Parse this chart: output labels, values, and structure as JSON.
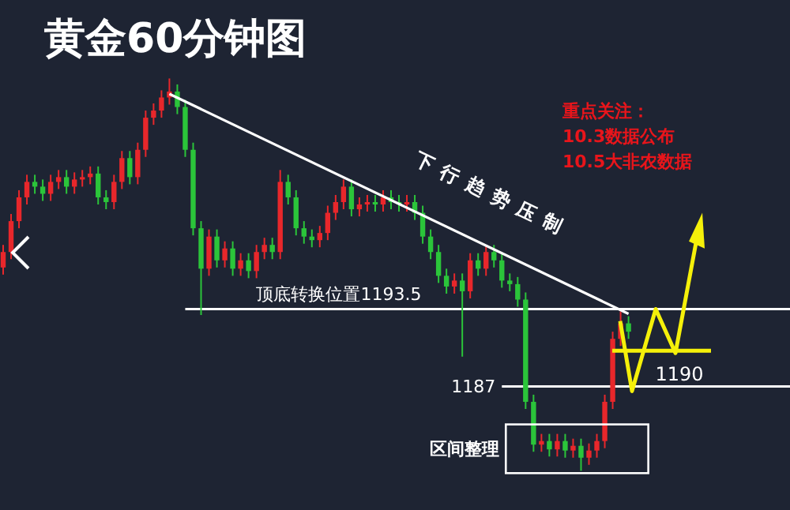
{
  "chart_data": {
    "type": "candlestick",
    "title": "黄金60分钟图",
    "categories": [
      null,
      null,
      null,
      null,
      null,
      null,
      null,
      null,
      null,
      null,
      null,
      null,
      null,
      null,
      null,
      null,
      null,
      null,
      null,
      null,
      null,
      null,
      null,
      null,
      null,
      null,
      null,
      null,
      null,
      null,
      null,
      null,
      null,
      null,
      null,
      null,
      null,
      null,
      null,
      null,
      null,
      null,
      null,
      null,
      null,
      null,
      null,
      null,
      null,
      null,
      null,
      null,
      null,
      null,
      null,
      null,
      null,
      null,
      null,
      null,
      null,
      null,
      null,
      null,
      null,
      null,
      null,
      null,
      null,
      null,
      null,
      null,
      null,
      null,
      null,
      null,
      null,
      null,
      null,
      null
    ],
    "ohlc": [
      [
        1197.0,
        1198.9,
        1196.4,
        1198.3
      ],
      [
        1198.3,
        1201.5,
        1197.7,
        1200.9
      ],
      [
        1200.9,
        1203.5,
        1200.3,
        1202.9
      ],
      [
        1202.9,
        1204.8,
        1202.3,
        1204.2
      ],
      [
        1204.2,
        1204.8,
        1203.2,
        1203.8
      ],
      [
        1203.8,
        1204.4,
        1202.6,
        1203.2
      ],
      [
        1203.2,
        1204.8,
        1202.6,
        1204.2
      ],
      [
        1204.2,
        1205.2,
        1203.6,
        1204.6
      ],
      [
        1204.6,
        1205.2,
        1203.2,
        1203.8
      ],
      [
        1203.8,
        1205.0,
        1203.2,
        1204.4
      ],
      [
        1204.4,
        1205.2,
        1203.8,
        1204.6
      ],
      [
        1204.6,
        1205.5,
        1204.0,
        1204.9
      ],
      [
        1204.9,
        1205.5,
        1202.3,
        1202.9
      ],
      [
        1202.9,
        1203.5,
        1201.9,
        1202.5
      ],
      [
        1202.5,
        1204.8,
        1201.9,
        1204.2
      ],
      [
        1204.2,
        1206.8,
        1203.6,
        1206.2
      ],
      [
        1206.2,
        1206.8,
        1204.0,
        1204.6
      ],
      [
        1204.6,
        1207.5,
        1204.0,
        1206.9
      ],
      [
        1206.9,
        1210.2,
        1206.3,
        1209.6
      ],
      [
        1209.6,
        1210.8,
        1209.0,
        1210.2
      ],
      [
        1210.2,
        1211.9,
        1209.6,
        1211.3
      ],
      [
        1211.3,
        1212.9,
        1210.7,
        1211.8
      ],
      [
        1211.8,
        1212.4,
        1209.9,
        1210.5
      ],
      [
        1210.5,
        1211.1,
        1206.3,
        1206.9
      ],
      [
        1206.9,
        1207.5,
        1199.7,
        1200.3
      ],
      [
        1200.3,
        1200.9,
        1193.0,
        1196.9
      ],
      [
        1196.9,
        1200.2,
        1196.3,
        1199.6
      ],
      [
        1199.6,
        1200.2,
        1197.0,
        1197.6
      ],
      [
        1197.6,
        1199.2,
        1197.0,
        1198.6
      ],
      [
        1198.6,
        1199.2,
        1196.3,
        1196.9
      ],
      [
        1196.9,
        1198.2,
        1196.3,
        1197.6
      ],
      [
        1197.6,
        1198.2,
        1196.1,
        1196.7
      ],
      [
        1196.7,
        1198.9,
        1196.1,
        1198.3
      ],
      [
        1198.3,
        1199.5,
        1197.7,
        1198.9
      ],
      [
        1198.9,
        1199.5,
        1197.7,
        1198.3
      ],
      [
        1198.3,
        1205.2,
        1197.7,
        1204.2
      ],
      [
        1204.2,
        1204.8,
        1202.3,
        1202.9
      ],
      [
        1202.9,
        1203.5,
        1199.7,
        1200.3
      ],
      [
        1200.3,
        1200.9,
        1199.0,
        1199.6
      ],
      [
        1199.6,
        1200.2,
        1198.7,
        1199.3
      ],
      [
        1199.3,
        1200.5,
        1198.7,
        1199.9
      ],
      [
        1199.9,
        1202.2,
        1199.3,
        1201.6
      ],
      [
        1201.6,
        1203.1,
        1201.0,
        1202.5
      ],
      [
        1202.5,
        1204.4,
        1201.9,
        1203.8
      ],
      [
        1203.8,
        1204.4,
        1201.3,
        1201.9
      ],
      [
        1201.9,
        1202.9,
        1201.3,
        1202.3
      ],
      [
        1202.3,
        1203.1,
        1201.7,
        1202.5
      ],
      [
        1202.5,
        1203.1,
        1201.7,
        1202.3
      ],
      [
        1202.3,
        1203.5,
        1201.7,
        1202.9
      ],
      [
        1202.9,
        1203.5,
        1201.9,
        1202.5
      ],
      [
        1202.5,
        1203.1,
        1201.7,
        1202.3
      ],
      [
        1202.3,
        1203.1,
        1201.7,
        1202.5
      ],
      [
        1202.5,
        1203.1,
        1201.0,
        1201.6
      ],
      [
        1201.6,
        1202.2,
        1199.0,
        1199.6
      ],
      [
        1199.6,
        1200.2,
        1197.7,
        1198.3
      ],
      [
        1198.3,
        1198.9,
        1195.7,
        1196.3
      ],
      [
        1196.3,
        1196.9,
        1194.8,
        1195.4
      ],
      [
        1195.4,
        1196.5,
        1194.8,
        1195.9
      ],
      [
        1195.9,
        1196.5,
        1189.5,
        1195.0
      ],
      [
        1195.0,
        1198.2,
        1194.4,
        1197.6
      ],
      [
        1197.6,
        1198.2,
        1196.3,
        1196.9
      ],
      [
        1196.9,
        1198.9,
        1196.3,
        1198.3
      ],
      [
        1198.3,
        1198.9,
        1197.0,
        1197.6
      ],
      [
        1197.6,
        1198.2,
        1195.3,
        1195.9
      ],
      [
        1195.9,
        1196.5,
        1195.0,
        1195.6
      ],
      [
        1195.6,
        1196.2,
        1193.7,
        1194.3
      ],
      [
        1194.3,
        1194.9,
        1185.1,
        1185.7
      ],
      [
        1185.7,
        1186.3,
        1181.5,
        1182.1
      ],
      [
        1182.1,
        1183.0,
        1181.5,
        1182.4
      ],
      [
        1182.4,
        1183.0,
        1181.1,
        1181.7
      ],
      [
        1181.7,
        1183.0,
        1181.1,
        1182.4
      ],
      [
        1182.4,
        1183.0,
        1181.0,
        1181.6
      ],
      [
        1181.6,
        1182.6,
        1181.0,
        1182.0
      ],
      [
        1182.0,
        1182.6,
        1179.9,
        1181.0
      ],
      [
        1181.0,
        1182.2,
        1180.4,
        1181.6
      ],
      [
        1181.6,
        1183.0,
        1181.0,
        1182.4
      ],
      [
        1182.4,
        1186.3,
        1181.8,
        1185.7
      ],
      [
        1185.7,
        1191.6,
        1185.1,
        1191.0
      ],
      [
        1191.0,
        1193.3,
        1190.4,
        1192.3
      ],
      [
        1192.3,
        1192.9,
        1191.0,
        1191.6
      ]
    ],
    "series": [
      {
        "type": "line",
        "values": [
          null,
          null,
          null,
          null,
          null,
          null,
          null,
          null,
          null,
          null,
          null,
          null,
          null,
          null,
          null,
          null,
          null,
          null,
          null,
          null,
          null,
          1211.6,
          null,
          null,
          null,
          null,
          null,
          null,
          null,
          null,
          null,
          null,
          null,
          null,
          null,
          null,
          null,
          null,
          null,
          null,
          null,
          null,
          null,
          null,
          null,
          null,
          null,
          null,
          null,
          null,
          null,
          null,
          null,
          null,
          null,
          null,
          null,
          null,
          null,
          null,
          null,
          null,
          null,
          null,
          null,
          null,
          null,
          null,
          null,
          null,
          null,
          null,
          null,
          null,
          null,
          null,
          null,
          null,
          null,
          1193.1
        ],
        "color": "#ffffff"
      }
    ],
    "ylim": [
      1176.6,
      1219.5
    ],
    "ref_lines": [
      {
        "axis": "y",
        "value": 1193.5,
        "label": "顶底转换位置1193.5",
        "color": "#ffffff"
      },
      {
        "axis": "y",
        "value": 1187,
        "label": "1187",
        "color": "#ffffff"
      }
    ],
    "annotations": [
      "重点关注：",
      "10.3数据公布",
      "10.5大非农数据",
      "下行趋势压制",
      "区间整理",
      "1190"
    ]
  }
}
